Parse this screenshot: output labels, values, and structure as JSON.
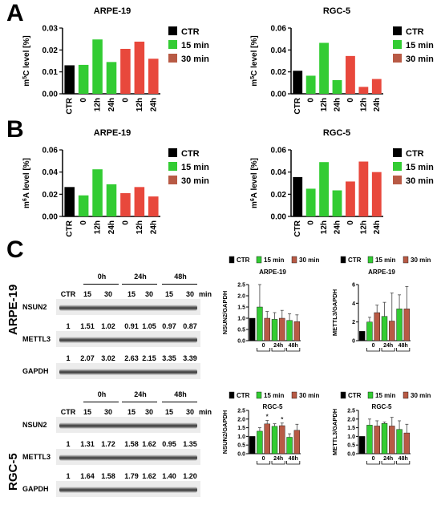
{
  "panels": {
    "a": "A",
    "b": "B",
    "c": "C"
  },
  "legend": {
    "ctr": "CTR",
    "m15": "15 min",
    "m30": "30 min"
  },
  "colors": {
    "ctr": "#000000",
    "m15": "#33cc33",
    "m30": "#e8483c",
    "m30_small": "#b85a45"
  },
  "x_categories": [
    "CTR",
    "0",
    "12h",
    "24h",
    "0",
    "12h",
    "24h"
  ],
  "chart_data": [
    {
      "type": "bar",
      "title": "ARPE-19",
      "ylabel": "m5C level [%]",
      "ylim": [
        0,
        0.03
      ],
      "yticks": [
        "0.00",
        "0.01",
        "0.02",
        "0.03"
      ],
      "categories": [
        "CTR",
        "0",
        "12h",
        "24h",
        "0",
        "12h",
        "24h"
      ],
      "values": [
        0.013,
        0.0132,
        0.0248,
        0.0145,
        0.0205,
        0.0238,
        0.016
      ],
      "groups": [
        "ctr",
        "m15",
        "m15",
        "m15",
        "m30",
        "m30",
        "m30"
      ]
    },
    {
      "type": "bar",
      "title": "RGC-5",
      "ylabel": "m5C level [%]",
      "ylim": [
        0,
        0.06
      ],
      "yticks": [
        "0.00",
        "0.02",
        "0.04",
        "0.06"
      ],
      "categories": [
        "CTR",
        "0",
        "12h",
        "24h",
        "0",
        "12h",
        "24h"
      ],
      "values": [
        0.021,
        0.0165,
        0.0465,
        0.0125,
        0.0345,
        0.0063,
        0.0135
      ],
      "groups": [
        "ctr",
        "m15",
        "m15",
        "m15",
        "m30",
        "m30",
        "m30"
      ]
    },
    {
      "type": "bar",
      "title": "ARPE-19",
      "ylabel": "m6A level [%]",
      "ylim": [
        0,
        0.06
      ],
      "yticks": [
        "0.00",
        "0.02",
        "0.04",
        "0.06"
      ],
      "categories": [
        "CTR",
        "0",
        "12h",
        "24h",
        "0",
        "12h",
        "24h"
      ],
      "values": [
        0.0265,
        0.019,
        0.0425,
        0.029,
        0.021,
        0.0265,
        0.018
      ],
      "groups": [
        "ctr",
        "m15",
        "m15",
        "m15",
        "m30",
        "m30",
        "m30"
      ]
    },
    {
      "type": "bar",
      "title": "RGC-5",
      "ylabel": "m6A level [%]",
      "ylim": [
        0,
        0.06
      ],
      "yticks": [
        "0.00",
        "0.02",
        "0.04",
        "0.06"
      ],
      "categories": [
        "CTR",
        "0",
        "12h",
        "24h",
        "0",
        "12h",
        "24h"
      ],
      "values": [
        0.0355,
        0.025,
        0.049,
        0.0235,
        0.0315,
        0.0495,
        0.04
      ],
      "groups": [
        "ctr",
        "m15",
        "m15",
        "m15",
        "m30",
        "m30",
        "m30"
      ]
    },
    {
      "type": "bar",
      "title": "ARPE-19",
      "ylabel": "NSUN2/GAPDH",
      "ylim": [
        0,
        2.5
      ],
      "yticks": [
        "0.0",
        "0.5",
        "1.0",
        "1.5",
        "2.0",
        "2.5"
      ],
      "categories": [
        "CTR",
        "0",
        "0",
        "24h",
        "24h",
        "48h",
        "48h"
      ],
      "values": [
        1.0,
        1.5,
        1.0,
        0.95,
        1.0,
        0.9,
        0.85
      ],
      "errors": [
        0,
        1.0,
        0.3,
        0.3,
        0.35,
        0.3,
        0.3
      ],
      "groups": [
        "ctr",
        "m15",
        "m30",
        "m15",
        "m30",
        "m15",
        "m30"
      ],
      "bracket_labels": [
        "0",
        "24h",
        "48h"
      ]
    },
    {
      "type": "bar",
      "title": "ARPE-19",
      "ylabel": "METTL3/GAPDH",
      "ylim": [
        0,
        6
      ],
      "yticks": [
        "0",
        "2",
        "4",
        "6"
      ],
      "categories": [
        "CTR",
        "0",
        "0",
        "24h",
        "24h",
        "48h",
        "48h"
      ],
      "values": [
        1.0,
        2.0,
        3.0,
        2.6,
        2.1,
        3.4,
        3.4
      ],
      "errors": [
        0,
        0.5,
        0.8,
        1.5,
        3.0,
        1.5,
        2.4
      ],
      "groups": [
        "ctr",
        "m15",
        "m30",
        "m15",
        "m30",
        "m15",
        "m30"
      ],
      "bracket_labels": [
        "0",
        "24h",
        "48h"
      ]
    },
    {
      "type": "bar",
      "title": "RGC-5",
      "ylabel": "NSUN2/GAPDH",
      "ylim": [
        0,
        2.5
      ],
      "yticks": [
        "0.0",
        "0.5",
        "1.0",
        "1.5",
        "2.0",
        "2.5"
      ],
      "categories": [
        "CTR",
        "0",
        "0",
        "24h",
        "24h",
        "48h",
        "48h"
      ],
      "values": [
        1.0,
        1.3,
        1.72,
        1.58,
        1.62,
        0.95,
        1.35
      ],
      "errors": [
        0,
        0.2,
        0.2,
        0.15,
        0.15,
        0.2,
        0.35
      ],
      "groups": [
        "ctr",
        "m15",
        "m30",
        "m15",
        "m30",
        "m15",
        "m30"
      ],
      "bracket_labels": [
        "0",
        "24h",
        "48h"
      ],
      "stars": [
        "",
        "",
        "*",
        "",
        "*",
        "",
        ""
      ]
    },
    {
      "type": "bar",
      "title": "RGC-5",
      "ylabel": "METTL3/GAPDH",
      "ylim": [
        0,
        2.5
      ],
      "yticks": [
        "0.0",
        "0.5",
        "1.0",
        "1.5",
        "2.0",
        "2.5"
      ],
      "categories": [
        "CTR",
        "0",
        "0",
        "24h",
        "24h",
        "48h",
        "48h"
      ],
      "values": [
        1.0,
        1.65,
        1.6,
        1.75,
        1.6,
        1.4,
        1.2
      ],
      "errors": [
        0,
        0.35,
        0.3,
        0.08,
        0.5,
        0.5,
        0.5
      ],
      "groups": [
        "ctr",
        "m15",
        "m30",
        "m15",
        "m30",
        "m15",
        "m30"
      ],
      "bracket_labels": [
        "0",
        "24h",
        "48h"
      ]
    }
  ],
  "blots": {
    "cell_lines": [
      "ARPE-19",
      "RGC-5"
    ],
    "time_headers": [
      "0h",
      "24h",
      "48h"
    ],
    "lane_labels": [
      "CTR",
      "15",
      "30",
      "15",
      "30",
      "15",
      "30"
    ],
    "unit": "min",
    "proteins": [
      "NSUN2",
      "METTL3",
      "GAPDH"
    ],
    "arpe_nsun2": [
      "1",
      "1.51",
      "1.02",
      "0.91",
      "1.05",
      "0.97",
      "0.87"
    ],
    "arpe_mettl3": [
      "1",
      "2.07",
      "3.02",
      "2.63",
      "2.15",
      "3.35",
      "3.39"
    ],
    "rgc_nsun2": [
      "1",
      "1.31",
      "1.72",
      "1.58",
      "1.62",
      "0.95",
      "1.35"
    ],
    "rgc_mettl3": [
      "1",
      "1.64",
      "1.58",
      "1.79",
      "1.62",
      "1.40",
      "1.20"
    ]
  }
}
